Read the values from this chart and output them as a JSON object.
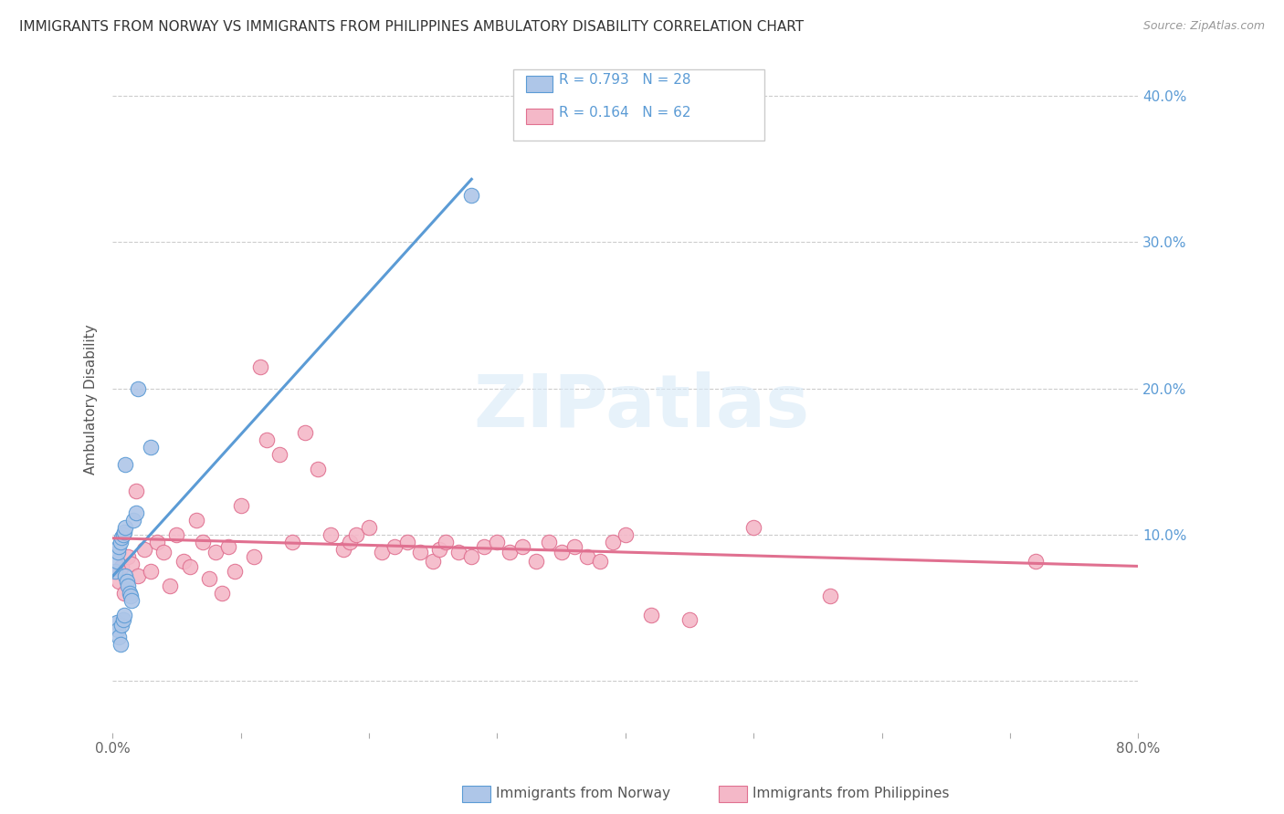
{
  "title": "IMMIGRANTS FROM NORWAY VS IMMIGRANTS FROM PHILIPPINES AMBULATORY DISABILITY CORRELATION CHART",
  "source": "Source: ZipAtlas.com",
  "ylabel": "Ambulatory Disability",
  "norway_R": 0.793,
  "norway_N": 28,
  "philippines_R": 0.164,
  "philippines_N": 62,
  "xlim": [
    0.0,
    0.8
  ],
  "ylim": [
    -0.035,
    0.42
  ],
  "norway_color": "#aec6e8",
  "norway_line_color": "#5b9bd5",
  "philippines_color": "#f4b8c8",
  "philippines_line_color": "#e07090",
  "background_color": "#ffffff",
  "norway_x": [
    0.002,
    0.003,
    0.004,
    0.005,
    0.006,
    0.007,
    0.008,
    0.009,
    0.01,
    0.01,
    0.011,
    0.012,
    0.013,
    0.014,
    0.015,
    0.016,
    0.018,
    0.02,
    0.003,
    0.004,
    0.005,
    0.006,
    0.007,
    0.008,
    0.009,
    0.01,
    0.03,
    0.28
  ],
  "norway_y": [
    0.075,
    0.082,
    0.088,
    0.092,
    0.095,
    0.098,
    0.1,
    0.102,
    0.105,
    0.072,
    0.068,
    0.065,
    0.06,
    0.058,
    0.055,
    0.11,
    0.115,
    0.2,
    0.04,
    0.035,
    0.03,
    0.025,
    0.038,
    0.042,
    0.045,
    0.148,
    0.16,
    0.332
  ],
  "philippines_x": [
    0.003,
    0.005,
    0.007,
    0.009,
    0.012,
    0.015,
    0.018,
    0.02,
    0.025,
    0.03,
    0.035,
    0.04,
    0.045,
    0.05,
    0.055,
    0.06,
    0.065,
    0.07,
    0.075,
    0.08,
    0.085,
    0.09,
    0.095,
    0.1,
    0.11,
    0.115,
    0.12,
    0.13,
    0.14,
    0.15,
    0.16,
    0.17,
    0.18,
    0.185,
    0.19,
    0.2,
    0.21,
    0.22,
    0.23,
    0.24,
    0.25,
    0.255,
    0.26,
    0.27,
    0.28,
    0.29,
    0.3,
    0.31,
    0.32,
    0.33,
    0.34,
    0.35,
    0.36,
    0.37,
    0.38,
    0.39,
    0.4,
    0.42,
    0.45,
    0.5,
    0.56,
    0.72
  ],
  "philippines_y": [
    0.075,
    0.068,
    0.078,
    0.06,
    0.085,
    0.08,
    0.13,
    0.072,
    0.09,
    0.075,
    0.095,
    0.088,
    0.065,
    0.1,
    0.082,
    0.078,
    0.11,
    0.095,
    0.07,
    0.088,
    0.06,
    0.092,
    0.075,
    0.12,
    0.085,
    0.215,
    0.165,
    0.155,
    0.095,
    0.17,
    0.145,
    0.1,
    0.09,
    0.095,
    0.1,
    0.105,
    0.088,
    0.092,
    0.095,
    0.088,
    0.082,
    0.09,
    0.095,
    0.088,
    0.085,
    0.092,
    0.095,
    0.088,
    0.092,
    0.082,
    0.095,
    0.088,
    0.092,
    0.085,
    0.082,
    0.095,
    0.1,
    0.045,
    0.042,
    0.105,
    0.058,
    0.082
  ]
}
